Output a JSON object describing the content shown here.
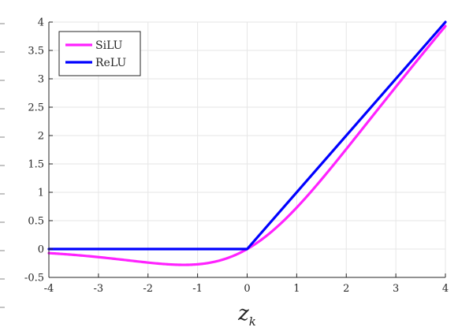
{
  "chart_data": {
    "type": "line",
    "title": "",
    "xlabel": "z",
    "xlabel_subscript": "k",
    "ylabel": "",
    "xlim": [
      -4,
      4
    ],
    "ylim": [
      -0.5,
      4
    ],
    "xticks": [
      -4,
      -3,
      -2,
      -1,
      0,
      1,
      2,
      3,
      4
    ],
    "xtick_labels": [
      "-4",
      "-3",
      "-2",
      "-1",
      "0",
      "1",
      "2",
      "3",
      "4"
    ],
    "yticks": [
      -0.5,
      0,
      0.5,
      1,
      1.5,
      2,
      2.5,
      3,
      3.5,
      4
    ],
    "ytick_labels": [
      "-0.5",
      "0",
      "0.5",
      "1",
      "1.5",
      "2",
      "2.5",
      "3",
      "3.5",
      "4"
    ],
    "grid": true,
    "legend_position": "top-left",
    "series": [
      {
        "name": "SiLU",
        "color": "#ff22ff",
        "x": [
          -4,
          -3.5,
          -3,
          -2.5,
          -2,
          -1.5,
          -1.25,
          -1,
          -0.75,
          -0.5,
          -0.25,
          0,
          0.25,
          0.5,
          0.75,
          1,
          1.5,
          2,
          2.5,
          3,
          3.5,
          4
        ],
        "y": [
          -0.072,
          -0.103,
          -0.142,
          -0.189,
          -0.238,
          -0.274,
          -0.278,
          -0.269,
          -0.241,
          -0.189,
          -0.109,
          0,
          0.141,
          0.311,
          0.509,
          0.731,
          1.226,
          1.762,
          2.311,
          2.858,
          3.394,
          3.928
        ]
      },
      {
        "name": "ReLU",
        "color": "#0000ff",
        "x": [
          -4,
          0,
          4
        ],
        "y": [
          0,
          0,
          4
        ]
      }
    ]
  }
}
